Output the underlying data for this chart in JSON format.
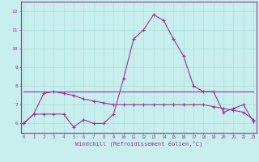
{
  "xlabel": "Windchill (Refroidissement éolien,°C)",
  "bg_color": "#c8eeee",
  "grid_color": "#aadddd",
  "line_color": "#993399",
  "x": [
    0,
    1,
    2,
    3,
    4,
    5,
    6,
    7,
    8,
    9,
    10,
    11,
    12,
    13,
    14,
    15,
    16,
    17,
    18,
    19,
    20,
    21,
    22,
    23
  ],
  "line1": [
    6.0,
    6.5,
    6.5,
    6.5,
    6.5,
    5.8,
    6.2,
    6.0,
    6.0,
    6.5,
    8.4,
    10.5,
    11.0,
    11.8,
    11.5,
    10.5,
    9.6,
    8.0,
    7.7,
    7.7,
    6.6,
    6.8,
    7.0,
    6.1
  ],
  "line2": [
    6.0,
    6.5,
    7.6,
    7.7,
    7.6,
    7.5,
    7.3,
    7.2,
    7.1,
    7.0,
    7.0,
    7.0,
    7.0,
    7.0,
    7.0,
    7.0,
    7.0,
    7.0,
    7.0,
    6.9,
    6.8,
    6.7,
    6.6,
    6.2
  ],
  "line3_x": [
    0,
    23
  ],
  "line3_y": [
    7.7,
    7.7
  ],
  "ylim": [
    5.5,
    12.5
  ],
  "yticks": [
    6,
    7,
    8,
    9,
    10,
    11,
    12
  ],
  "xlim": [
    -0.3,
    23.3
  ]
}
